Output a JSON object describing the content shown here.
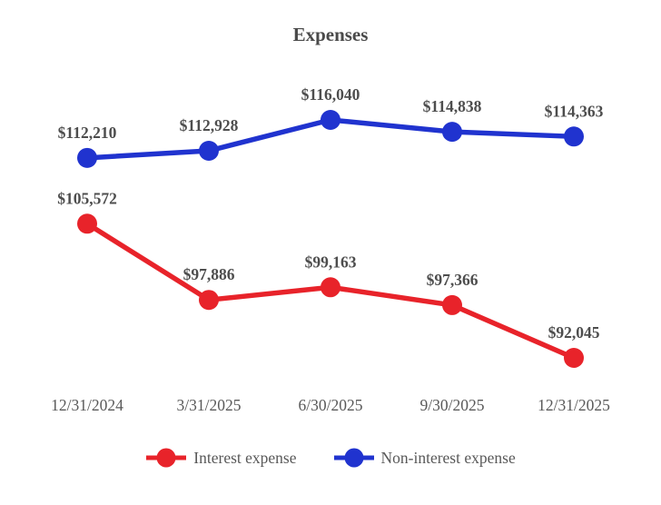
{
  "chart_data": {
    "type": "line",
    "title": "Expenses",
    "categories": [
      "12/31/2024",
      "3/31/2025",
      "6/30/2025",
      "9/30/2025",
      "12/31/2025"
    ],
    "series": [
      {
        "name": "Interest expense",
        "color": "#E8232A",
        "values": [
          105572,
          97886,
          99163,
          97366,
          92045
        ],
        "point_labels": [
          "$105,572",
          "$97,886",
          "$99,163",
          "$97,366",
          "$92,045"
        ]
      },
      {
        "name": "Non-interest expense",
        "color": "#2033CF",
        "values": [
          112210,
          112928,
          116040,
          114838,
          114363
        ],
        "point_labels": [
          "$112,210",
          "$112,928",
          "$116,040",
          "$114,838",
          "$114,363"
        ]
      }
    ],
    "ylim": [
      92045,
      116040
    ],
    "grid": false,
    "axes_visible": false,
    "legend_position": "bottom"
  },
  "styles": {
    "background": "#FFFFFF",
    "title_color": "#4A4A4A",
    "point_label_color": "#4D4D4D",
    "axis_label_color": "#595959",
    "legend_text_color": "#595959"
  }
}
